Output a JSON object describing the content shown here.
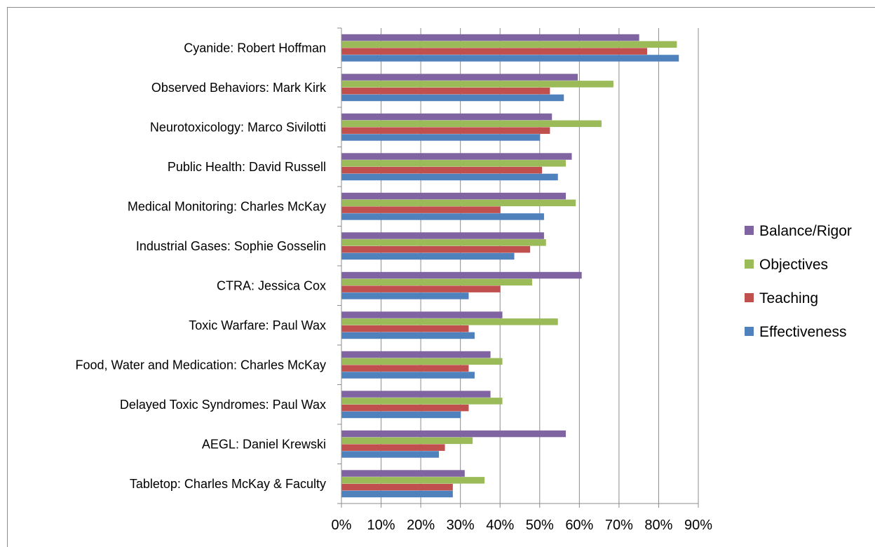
{
  "chart_data": {
    "type": "bar",
    "orientation": "horizontal",
    "categories": [
      "Cyanide: Robert Hoffman",
      "Observed Behaviors: Mark Kirk",
      "Neurotoxicology: Marco Sivilotti",
      "Public Health: David Russell",
      "Medical Monitoring: Charles McKay",
      "Industrial Gases: Sophie Gosselin",
      "CTRA: Jessica Cox",
      "Toxic Warfare: Paul Wax",
      "Food, Water and Medication: Charles McKay",
      "Delayed Toxic Syndromes: Paul Wax",
      "AEGL: Daniel Krewski",
      "Tabletop: Charles McKay & Faculty"
    ],
    "series": [
      {
        "name": "Balance/Rigor",
        "color": "#8064a2",
        "values": [
          0.75,
          0.595,
          0.53,
          0.58,
          0.565,
          0.51,
          0.605,
          0.405,
          0.375,
          0.375,
          0.565,
          0.31
        ]
      },
      {
        "name": "Objectives",
        "color": "#9bbb59",
        "values": [
          0.845,
          0.685,
          0.655,
          0.565,
          0.59,
          0.515,
          0.48,
          0.545,
          0.405,
          0.405,
          0.33,
          0.36
        ]
      },
      {
        "name": "Teaching",
        "color": "#c0504d",
        "values": [
          0.77,
          0.525,
          0.525,
          0.505,
          0.4,
          0.475,
          0.4,
          0.32,
          0.32,
          0.32,
          0.26,
          0.28
        ]
      },
      {
        "name": "Effectiveness",
        "color": "#4f81bd",
        "values": [
          0.85,
          0.56,
          0.5,
          0.545,
          0.51,
          0.435,
          0.32,
          0.335,
          0.335,
          0.3,
          0.245,
          0.28
        ]
      }
    ],
    "xlim": [
      0,
      0.9
    ],
    "xticks": [
      "0%",
      "10%",
      "20%",
      "30%",
      "40%",
      "50%",
      "60%",
      "70%",
      "80%",
      "90%"
    ],
    "grid": true,
    "legend": "right",
    "legend_order": [
      "Balance/Rigor",
      "Objectives",
      "Teaching",
      "Effectiveness"
    ]
  }
}
